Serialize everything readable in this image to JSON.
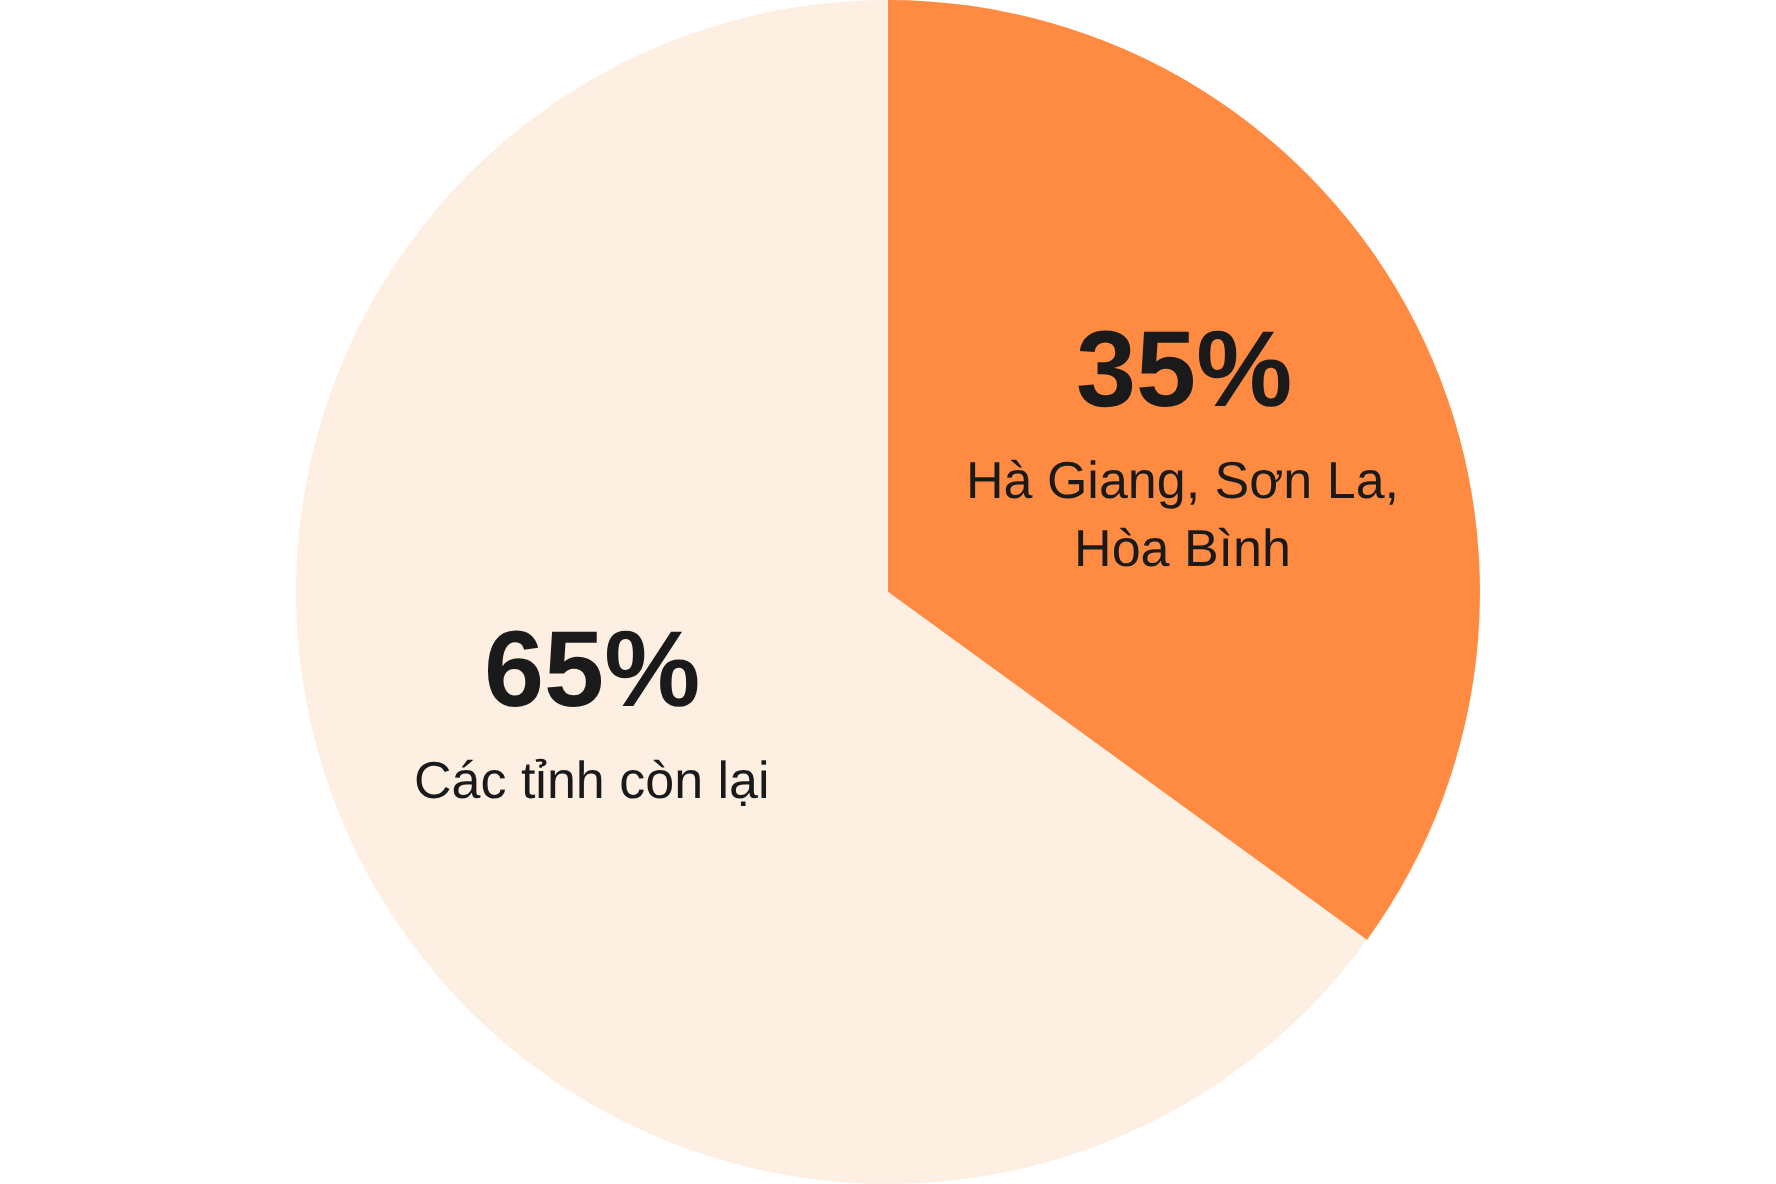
{
  "chart_data": {
    "type": "pie",
    "categories": [
      "Hà Giang, Sơn La, Hòa Bình",
      "Các tỉnh còn lại"
    ],
    "values": [
      35,
      65
    ],
    "colors": [
      "#ff8a42",
      "#fdf0e2"
    ],
    "value_labels": [
      "35%",
      "65%"
    ]
  }
}
